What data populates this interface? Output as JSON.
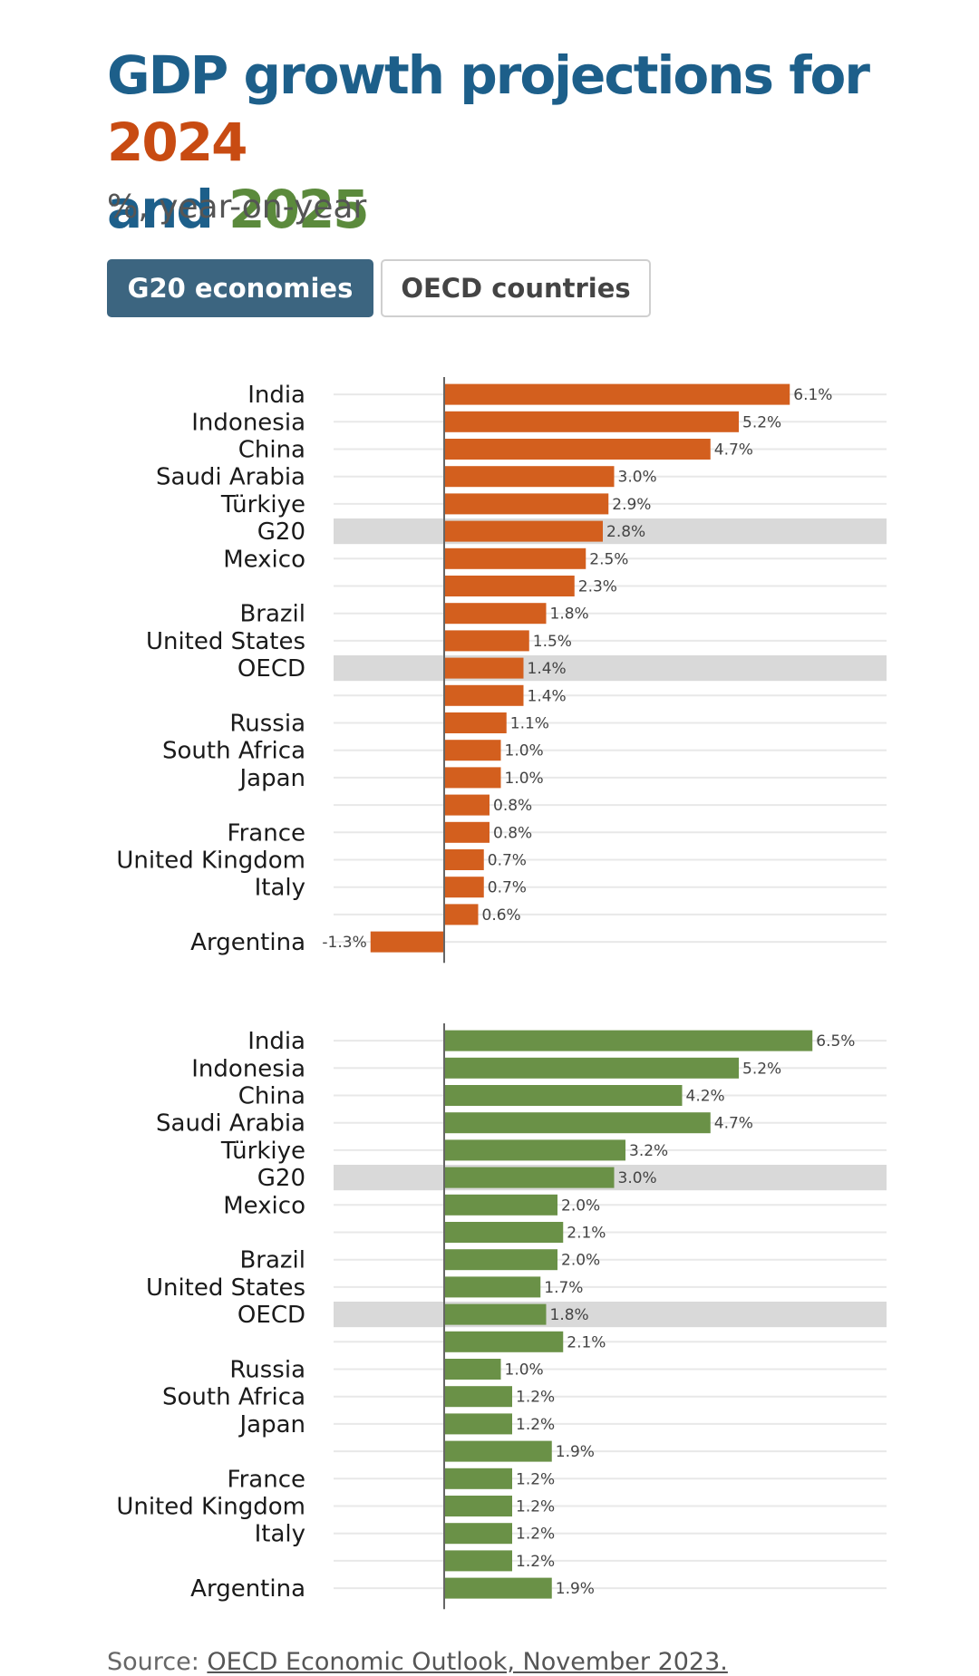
{
  "title": {
    "line1": "GDP growth projections for ",
    "year1": "2024",
    "line2": "and ",
    "year2": "2025"
  },
  "subtitle": "%, year-on-year",
  "tabs": [
    {
      "label": "G20 economies",
      "active": true
    },
    {
      "label": "OECD countries",
      "active": false
    }
  ],
  "source": {
    "prefix": "Source: ",
    "link_text": "OECD Economic Outlook, November 2023."
  },
  "colors": {
    "y2024": "#d35f1e",
    "y2025": "#6a9147",
    "highlight_row": "#d9d9d9",
    "grid": "#e8e8e8",
    "axis": "#666666"
  },
  "chart_data": [
    {
      "type": "bar",
      "orientation": "horizontal",
      "series_name": "2024",
      "categories": [
        "India",
        "Indonesia",
        "China",
        "Saudi Arabia",
        "Türkiye",
        "G20",
        "Mexico",
        "",
        "Brazil",
        "United States",
        "OECD",
        "",
        "Russia",
        "South Africa",
        "Japan",
        "",
        "France",
        "United Kingdom",
        "Italy",
        "",
        "Argentina"
      ],
      "values": [
        6.1,
        5.2,
        4.7,
        3.0,
        2.9,
        2.8,
        2.5,
        2.3,
        1.8,
        1.5,
        1.4,
        1.4,
        1.1,
        1.0,
        1.0,
        0.8,
        0.8,
        0.7,
        0.7,
        0.6,
        -1.3
      ],
      "labels": [
        "6.1%",
        "5.2%",
        "4.7%",
        "3.0%",
        "2.9%",
        "2.8%",
        "2.5%",
        "2.3%",
        "1.8%",
        "1.5%",
        "1.4%",
        "1.4%",
        "1.1%",
        "1.0%",
        "1.0%",
        "0.8%",
        "0.8%",
        "0.7%",
        "0.7%",
        "0.6%",
        "-1.3%"
      ],
      "highlighted": [
        "G20",
        "OECD"
      ],
      "xlim": [
        -2,
        8
      ]
    },
    {
      "type": "bar",
      "orientation": "horizontal",
      "series_name": "2025",
      "categories": [
        "India",
        "Indonesia",
        "China",
        "Saudi Arabia",
        "Türkiye",
        "G20",
        "Mexico",
        "",
        "Brazil",
        "United States",
        "OECD",
        "",
        "Russia",
        "South Africa",
        "Japan",
        "",
        "France",
        "United Kingdom",
        "Italy",
        "",
        "Argentina"
      ],
      "values": [
        6.5,
        5.2,
        4.2,
        4.7,
        3.2,
        3.0,
        2.0,
        2.1,
        2.0,
        1.7,
        1.8,
        2.1,
        1.0,
        1.2,
        1.2,
        1.9,
        1.2,
        1.2,
        1.2,
        1.2,
        1.9
      ],
      "labels": [
        "6.5%",
        "5.2%",
        "4.2%",
        "4.7%",
        "3.2%",
        "3.0%",
        "2.0%",
        "2.1%",
        "2.0%",
        "1.7%",
        "1.8%",
        "2.1%",
        "1.0%",
        "1.2%",
        "1.2%",
        "1.9%",
        "1.2%",
        "1.2%",
        "1.2%",
        "1.2%",
        "1.9%"
      ],
      "highlighted": [
        "G20",
        "OECD"
      ],
      "xlim": [
        -2,
        8
      ]
    }
  ]
}
